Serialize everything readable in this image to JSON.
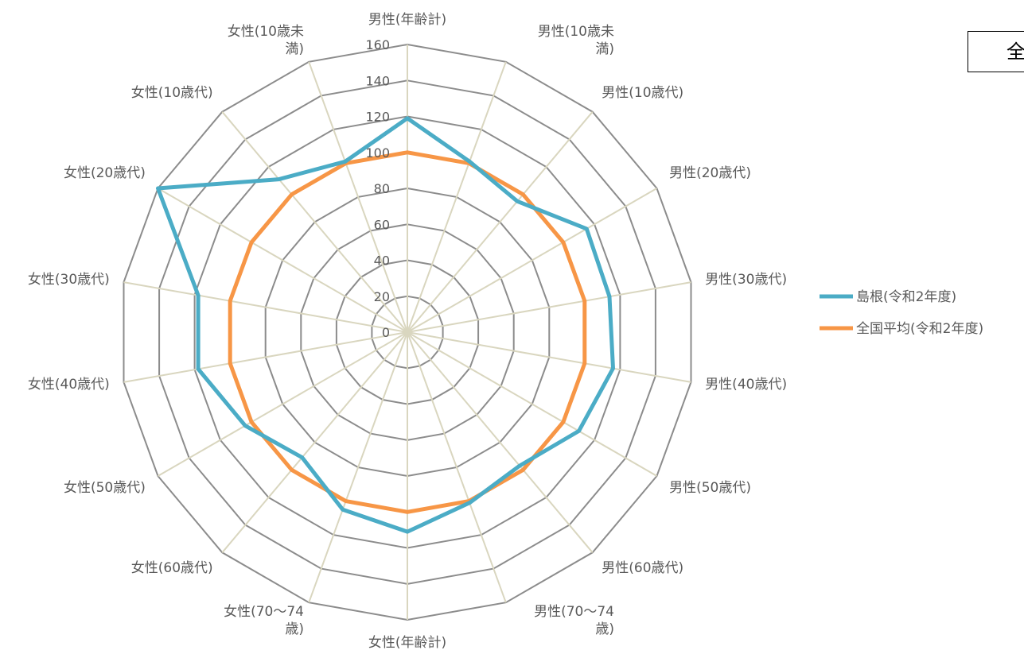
{
  "title_box": {
    "text": "全"
  },
  "chart_data": {
    "type": "radar",
    "categories": [
      "男性(年齢計)",
      "男性(10歳未満)",
      "男性(10歳代)",
      "男性(20歳代)",
      "男性(30歳代)",
      "男性(40歳代)",
      "男性(50歳代)",
      "男性(60歳代)",
      "男性(70～74歳)",
      "女性(年齢計)",
      "女性(70～74歳)",
      "女性(60歳代)",
      "女性(50歳代)",
      "女性(40歳代)",
      "女性(30歳代)",
      "女性(20歳代)",
      "女性(10歳代)",
      "女性(10歳未満)"
    ],
    "category_lines": [
      [
        "男性(年齢計)"
      ],
      [
        "男性(10歳未",
        "満)"
      ],
      [
        "男性(10歳代)"
      ],
      [
        "男性(20歳代)"
      ],
      [
        "男性(30歳代)"
      ],
      [
        "男性(40歳代)"
      ],
      [
        "男性(50歳代)"
      ],
      [
        "男性(60歳代)"
      ],
      [
        "男性(70～74",
        "歳)"
      ],
      [
        "女性(年齢計)"
      ],
      [
        "女性(70～74",
        "歳)"
      ],
      [
        "女性(60歳代)"
      ],
      [
        "女性(50歳代)"
      ],
      [
        "女性(40歳代)"
      ],
      [
        "女性(30歳代)"
      ],
      [
        "女性(20歳代)"
      ],
      [
        "女性(10歳代)"
      ],
      [
        "女性(10歳未",
        "満)"
      ]
    ],
    "ticks": [
      "0",
      "20",
      "40",
      "60",
      "80",
      "100",
      "120",
      "140",
      "160"
    ],
    "rlim": [
      0,
      160
    ],
    "series": [
      {
        "name": "島根(令和2年度)",
        "color": "#4BACC6",
        "values": [
          119,
          101,
          95,
          115,
          114,
          116,
          110,
          97,
          101,
          111,
          105,
          91,
          104,
          118,
          118,
          160,
          111,
          101
        ]
      },
      {
        "name": "全国平均(令和2年度)",
        "color": "#F79646",
        "values": [
          100,
          100,
          100,
          100,
          100,
          100,
          100,
          100,
          100,
          100,
          100,
          100,
          100,
          100,
          100,
          100,
          100,
          100
        ]
      }
    ],
    "legend_position": "right"
  }
}
